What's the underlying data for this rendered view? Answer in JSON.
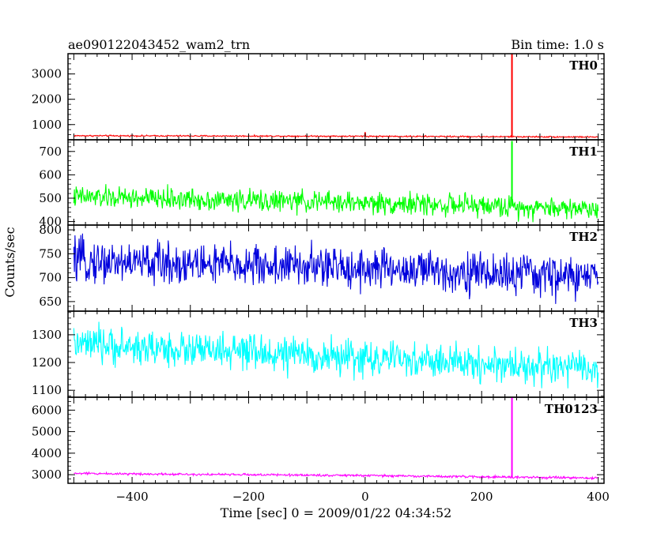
{
  "chart_data": {
    "type": "line",
    "title": "ae090122043452_wam2_trn",
    "bin_time_label": "Bin time: 1.0 s",
    "xlabel": "Time [sec] 0 = 2009/01/22 04:34:52",
    "ylabel": "Counts/sec",
    "xlim": [
      -510,
      410
    ],
    "x_ticks": [
      -400,
      -200,
      0,
      200,
      400
    ],
    "x_tick_labels": [
      "−400",
      "−200",
      "0",
      "200",
      "400"
    ],
    "x_range_data": [
      -500,
      400
    ],
    "panels": [
      {
        "name": "TH0",
        "color": "#ff0000",
        "ylim": [
          400,
          3800
        ],
        "y_ticks": [
          1000,
          2000,
          3000
        ],
        "y_tick_labels": [
          "1000",
          "2000",
          "3000"
        ],
        "baseline": [
          {
            "x": -500,
            "y": 560
          },
          {
            "x": 0,
            "y": 540
          },
          {
            "x": 400,
            "y": 510
          }
        ],
        "noise_amplitude": 25,
        "spikes": [
          {
            "x": 0,
            "y": 700
          },
          {
            "x": 252,
            "y": 3800
          }
        ]
      },
      {
        "name": "TH1",
        "color": "#00ff00",
        "ylim": [
          385,
          750
        ],
        "y_ticks": [
          400,
          500,
          600,
          700
        ],
        "y_tick_labels": [
          "400",
          "500",
          "600",
          "700"
        ],
        "baseline": [
          {
            "x": -500,
            "y": 505
          },
          {
            "x": 0,
            "y": 480
          },
          {
            "x": 400,
            "y": 455
          }
        ],
        "noise_amplitude": 40,
        "spikes": [
          {
            "x": 252,
            "y": 745
          }
        ]
      },
      {
        "name": "TH2",
        "color": "#0000dd",
        "ylim": [
          630,
          810
        ],
        "y_ticks": [
          650,
          700,
          750,
          800
        ],
        "y_tick_labels": [
          "650",
          "700",
          "750",
          "800"
        ],
        "baseline": [
          {
            "x": -500,
            "y": 735
          },
          {
            "x": 0,
            "y": 720
          },
          {
            "x": 400,
            "y": 700
          }
        ],
        "noise_amplitude": 38,
        "spikes": []
      },
      {
        "name": "TH3",
        "color": "#00ffff",
        "ylim": [
          1075,
          1385
        ],
        "y_ticks": [
          1100,
          1200,
          1300
        ],
        "y_tick_labels": [
          "1100",
          "1200",
          "1300"
        ],
        "baseline": [
          {
            "x": -500,
            "y": 1265
          },
          {
            "x": 0,
            "y": 1215
          },
          {
            "x": 400,
            "y": 1175
          }
        ],
        "noise_amplitude": 55,
        "spikes": []
      },
      {
        "name": "TH0123",
        "color": "#ff00ff",
        "ylim": [
          2600,
          6600
        ],
        "y_ticks": [
          3000,
          4000,
          5000,
          6000
        ],
        "y_tick_labels": [
          "3000",
          "4000",
          "5000",
          "6000"
        ],
        "baseline": [
          {
            "x": -500,
            "y": 3060
          },
          {
            "x": 0,
            "y": 2960
          },
          {
            "x": 400,
            "y": 2840
          }
        ],
        "noise_amplitude": 45,
        "spikes": [
          {
            "x": 252,
            "y": 6600
          }
        ]
      }
    ]
  }
}
